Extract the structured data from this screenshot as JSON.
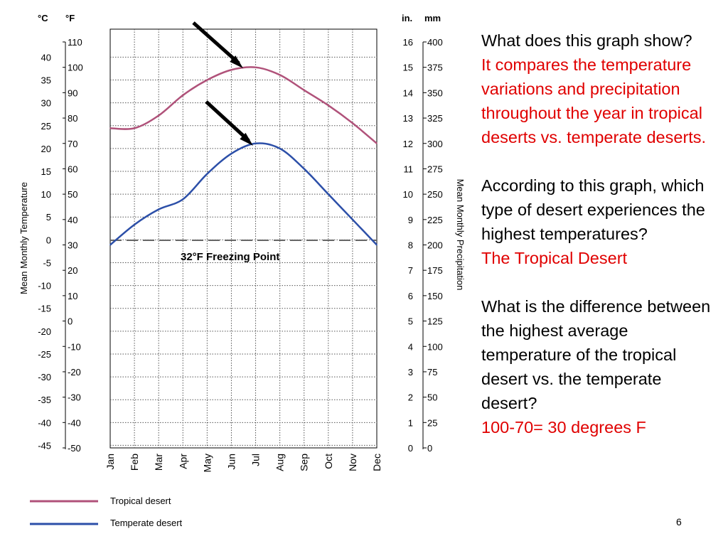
{
  "chart_data": {
    "type": "line",
    "x": [
      "Jan",
      "Feb",
      "Mar",
      "Apr",
      "May",
      "Jun",
      "Jul",
      "Aug",
      "Sep",
      "Oct",
      "Nov",
      "Dec"
    ],
    "celsius_unit": "°C",
    "fahrenheit_unit": "°F",
    "inches_unit": "in.",
    "mm_unit": "mm",
    "celsius_ticks": [
      "40",
      "35",
      "30",
      "25",
      "20",
      "15",
      "10",
      "5",
      "0",
      "-5",
      "-10",
      "-15",
      "-20",
      "-25",
      "-30",
      "-35",
      "-40",
      "-45"
    ],
    "fahrenheit_ticks": [
      "110",
      "100",
      "90",
      "80",
      "70",
      "60",
      "50",
      "40",
      "30",
      "20",
      "10",
      "0",
      "-10",
      "-20",
      "-30",
      "-40",
      "-50"
    ],
    "inch_ticks": [
      "16",
      "15",
      "14",
      "13",
      "12",
      "11",
      "10",
      "9",
      "8",
      "7",
      "6",
      "5",
      "4",
      "3",
      "2",
      "1",
      "0"
    ],
    "mm_ticks": [
      "400",
      "375",
      "350",
      "325",
      "300",
      "275",
      "250",
      "225",
      "200",
      "175",
      "150",
      "125",
      "100",
      "75",
      "50",
      "25",
      "0"
    ],
    "ylabel_left": "Mean Monthly Temperature",
    "ylabel_right": "Mean Monthly Precipitation",
    "ylim_fahrenheit": [
      -50,
      110
    ],
    "grid": true,
    "series": [
      {
        "name": "Tropical desert",
        "color": "#b0527a",
        "values": [
          76,
          76,
          81,
          89,
          95,
          99,
          100,
          97,
          91,
          85,
          78,
          70
        ]
      },
      {
        "name": "Temperate desert",
        "color": "#2c4fa8",
        "values": [
          30,
          38,
          44,
          48,
          58,
          66,
          70,
          68,
          60,
          50,
          40,
          30
        ]
      }
    ],
    "reference_line": {
      "label": "32°F Freezing Point",
      "value": 32
    }
  },
  "arrows": [
    "arrow-tropical-peak",
    "arrow-temperate-peak"
  ],
  "side_text": {
    "q1": "What does this graph show?",
    "a1": "It compares the temperature variations and precipitation throughout  the year in tropical deserts vs. temperate deserts.",
    "q2": "According to this graph, which type of desert experiences the highest temperatures?",
    "a2": "The Tropical Desert",
    "q3": "What is the difference between the highest average temperature of the tropical desert vs. the temperate desert?",
    "a3": "100-70= 30 degrees F"
  },
  "slide_number": "6",
  "colors": {
    "answer": "#e00000",
    "tropical": "#b0527a",
    "temperate": "#2c4fa8"
  }
}
